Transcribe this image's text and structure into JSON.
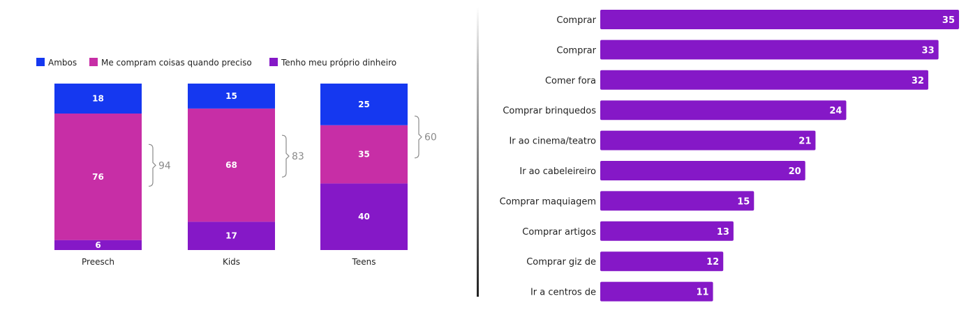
{
  "colors": {
    "ambos": "#1538f0",
    "me_compram": "#c72ea6",
    "proprio": "#8518c7",
    "bar": "#8518c7",
    "bracket": "#8a8a8a"
  },
  "chart_data": [
    {
      "type": "bar",
      "stacked": true,
      "legend_position": "top-left",
      "categories": [
        "Preesch",
        "Kids",
        "Teens"
      ],
      "series": [
        {
          "name": "Tenho meu próprio dinheiro",
          "values": [
            6,
            17,
            40
          ]
        },
        {
          "name": "Me compram coisas quando preciso",
          "values": [
            76,
            68,
            35
          ]
        },
        {
          "name": "Ambos",
          "values": [
            18,
            15,
            25
          ]
        }
      ],
      "legend_order": [
        2,
        1,
        0
      ],
      "bracket_totals": [
        94,
        83,
        60
      ],
      "ylim": [
        0,
        100
      ]
    },
    {
      "type": "bar",
      "orientation": "horizontal",
      "categories": [
        "Comprar",
        "Comprar",
        "Comer fora",
        "Comprar brinquedos",
        "Ir ao cinema/teatro",
        "Ir ao cabeleireiro",
        "Comprar maquiagem",
        "Comprar artigos",
        "Comprar giz de",
        "Ir a centros de"
      ],
      "values": [
        35,
        33,
        32,
        24,
        21,
        20,
        15,
        13,
        12,
        11
      ],
      "xlim": [
        0,
        35
      ]
    }
  ]
}
